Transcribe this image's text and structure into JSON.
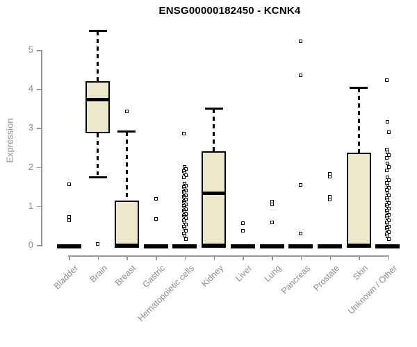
{
  "title": "ENSG00000182450 - KCNK4",
  "ylabel": "Expression",
  "style": {
    "box_fill": "#EDE7CB",
    "box_stroke": "#000000",
    "axis_color": "#969696",
    "label_color": "#8C8C8C",
    "title_color": "#000000",
    "background": "#FFFFFF"
  },
  "chart_data": {
    "type": "boxplot",
    "title": "ENSG00000182450 - KCNK4",
    "xlabel": "",
    "ylabel": "Expression",
    "ylim": [
      0,
      5
    ],
    "yticks": [
      0,
      1,
      2,
      3,
      4,
      5
    ],
    "grid": false,
    "categories": [
      "Bladder",
      "Brain",
      "Breast",
      "Gastric",
      "Hematopoietic cells",
      "Kidney",
      "Liver",
      "Lung",
      "Pancreas",
      "Prostate",
      "Skin",
      "Unknown / Other"
    ],
    "series": [
      {
        "label": "Bladder",
        "q1": 0,
        "median": 0,
        "q3": 0,
        "whisker_low": 0,
        "whisker_high": 0,
        "outliers": [
          1.55,
          0.72,
          0.64
        ]
      },
      {
        "label": "Brain",
        "q1": 2.87,
        "median": 3.73,
        "q3": 4.2,
        "whisker_low": 1.76,
        "whisker_high": 5.52,
        "outliers": [
          0.02
        ]
      },
      {
        "label": "Breast",
        "q1": 0,
        "median": 0,
        "q3": 1.14,
        "whisker_low": 0,
        "whisker_high": 2.93,
        "outliers": [
          3.42
        ]
      },
      {
        "label": "Gastric",
        "q1": 0,
        "median": 0,
        "q3": 0,
        "whisker_low": 0,
        "whisker_high": 0,
        "outliers": [
          1.18,
          0.67
        ]
      },
      {
        "label": "Hematopoietic cells",
        "q1": 0,
        "median": 0,
        "q3": 0,
        "whisker_low": 0,
        "whisker_high": 0,
        "outliers": [
          2.85,
          2.0,
          1.95,
          1.9,
          1.85,
          1.79,
          1.74,
          1.58,
          1.53,
          1.48,
          1.44,
          1.4,
          1.36,
          1.32,
          1.28,
          1.24,
          1.2,
          1.16,
          1.12,
          1.08,
          1.04,
          1.0,
          0.96,
          0.92,
          0.88,
          0.84,
          0.8,
          0.76,
          0.72,
          0.68,
          0.63,
          0.58,
          0.53,
          0.48,
          0.42,
          0.36,
          0.3,
          0.24,
          0.16
        ]
      },
      {
        "label": "Kidney",
        "q1": 0,
        "median": 1.33,
        "q3": 2.41,
        "whisker_low": 0,
        "whisker_high": 3.52,
        "outliers": []
      },
      {
        "label": "Liver",
        "q1": 0,
        "median": 0,
        "q3": 0,
        "whisker_low": 0,
        "whisker_high": 0,
        "outliers": [
          0.56,
          0.36
        ]
      },
      {
        "label": "Lung",
        "q1": 0,
        "median": 0,
        "q3": 0,
        "whisker_low": 0,
        "whisker_high": 0,
        "outliers": [
          1.12,
          1.04,
          0.57
        ]
      },
      {
        "label": "Pancreas",
        "q1": 0,
        "median": 0,
        "q3": 0,
        "whisker_low": 0,
        "whisker_high": 0,
        "outliers": [
          5.22,
          4.35,
          1.54,
          0.3
        ]
      },
      {
        "label": "Prostate",
        "q1": 0,
        "median": 0,
        "q3": 0,
        "whisker_low": 0,
        "whisker_high": 0,
        "outliers": [
          1.82,
          1.75,
          1.23,
          1.16
        ]
      },
      {
        "label": "Skin",
        "q1": 0,
        "median": 0,
        "q3": 2.36,
        "whisker_low": 0,
        "whisker_high": 4.05,
        "outliers": []
      },
      {
        "label": "Unknown / Other",
        "q1": 0,
        "median": 0,
        "q3": 0,
        "whisker_low": 0,
        "whisker_high": 0,
        "outliers": [
          4.23,
          3.16,
          2.89,
          2.45,
          2.38,
          2.3,
          2.24,
          2.09,
          2.0,
          1.91,
          1.73,
          1.66,
          1.59,
          1.52,
          1.46,
          1.41,
          1.33,
          1.27,
          1.2,
          1.14,
          1.08,
          1.03,
          0.98,
          0.93,
          0.88,
          0.83,
          0.78,
          0.73,
          0.68,
          0.63,
          0.58,
          0.53,
          0.48,
          0.43,
          0.38,
          0.33,
          0.28,
          0.22,
          0.16
        ]
      }
    ]
  }
}
